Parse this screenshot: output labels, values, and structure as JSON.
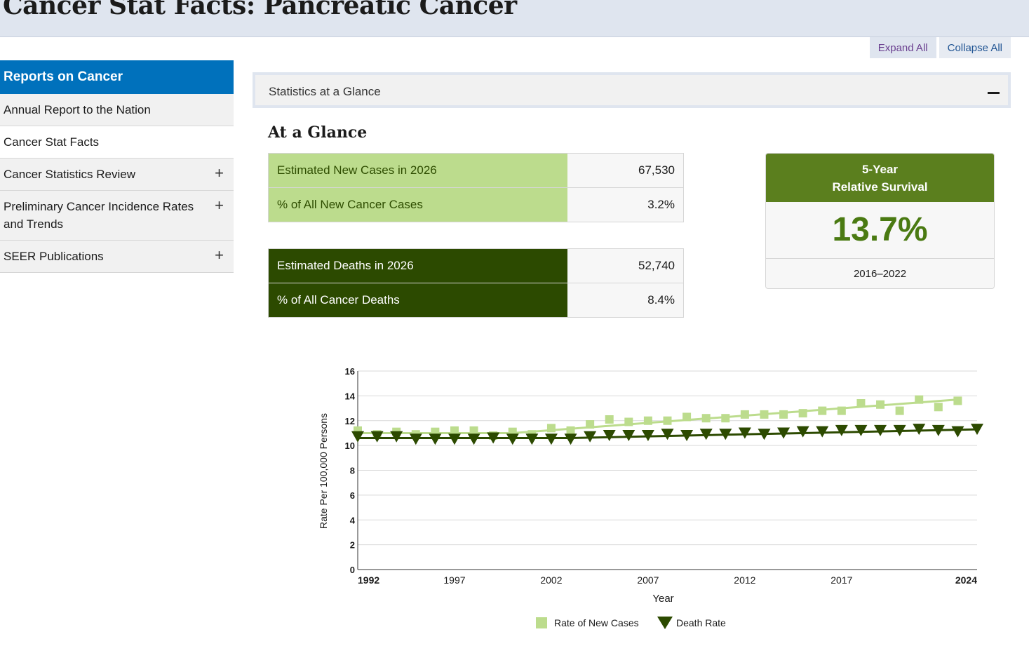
{
  "page": {
    "title": "Cancer Stat Facts: Pancreatic Cancer"
  },
  "controls": {
    "expand_all": "Expand All",
    "collapse_all": "Collapse All"
  },
  "sidebar": {
    "heading": "Reports on Cancer",
    "items": [
      {
        "label": "Annual Report to the Nation",
        "expandable": false
      },
      {
        "label": "Cancer Stat Facts",
        "expandable": false
      },
      {
        "label": "Cancer Statistics Review",
        "expandable": true,
        "toggle": "+"
      },
      {
        "label": "Preliminary Cancer Incidence Rates and Trends",
        "expandable": true,
        "toggle": "+"
      },
      {
        "label": "SEER Publications",
        "expandable": true,
        "toggle": "+"
      }
    ]
  },
  "accordion": {
    "label": "Statistics at a Glance",
    "state": "expanded"
  },
  "glance": {
    "heading": "At a Glance",
    "new_cases": [
      {
        "label": "Estimated New Cases in 2026",
        "value": "67,530"
      },
      {
        "label": "% of All New Cancer Cases",
        "value": "3.2%"
      }
    ],
    "deaths": [
      {
        "label": "Estimated Deaths in 2026",
        "value": "52,740"
      },
      {
        "label": "% of All Cancer Deaths",
        "value": "8.4%"
      }
    ],
    "survival": {
      "heading_line1": "5-Year",
      "heading_line2": "Relative Survival",
      "value": "13.7%",
      "range": "2016–2022"
    }
  },
  "colors": {
    "primary_blue": "#0071bc",
    "new_cases_green": "#bcdc8d",
    "death_green": "#2c4a00",
    "survival_green": "#5b7f1e"
  },
  "chart_data": {
    "type": "scatter",
    "xlabel": "Year",
    "ylabel": "Rate Per 100,000 Persons",
    "ylim": [
      0,
      16
    ],
    "xlim": [
      1992,
      2024
    ],
    "yticks": [
      0,
      2,
      4,
      6,
      8,
      10,
      12,
      14,
      16
    ],
    "xticks": [
      "1992",
      "1997",
      "2002",
      "2007",
      "2012",
      "2017",
      "2024"
    ],
    "grid": true,
    "legend_position": "bottom",
    "series": [
      {
        "name": "Rate of New Cases",
        "marker": "square",
        "color": "#bcdc8d",
        "x": [
          1992,
          1993,
          1994,
          1995,
          1996,
          1997,
          1998,
          1999,
          2000,
          2001,
          2002,
          2003,
          2004,
          2005,
          2006,
          2007,
          2008,
          2009,
          2010,
          2011,
          2012,
          2013,
          2014,
          2015,
          2016,
          2017,
          2018,
          2019,
          2020,
          2021,
          2022,
          2023
        ],
        "y": [
          11.2,
          10.9,
          11.1,
          10.9,
          11.1,
          11.2,
          11.2,
          10.8,
          11.1,
          10.9,
          11.4,
          11.2,
          11.7,
          12.1,
          11.9,
          12.0,
          12.0,
          12.3,
          12.2,
          12.2,
          12.5,
          12.5,
          12.5,
          12.6,
          12.8,
          12.8,
          13.4,
          13.3,
          12.8,
          13.7,
          13.1,
          13.6
        ],
        "trend": [
          [
            1992,
            11.0
          ],
          [
            2000,
            11.0
          ],
          [
            2023,
            13.7
          ]
        ]
      },
      {
        "name": "Death Rate",
        "marker": "triangle-down",
        "color": "#2c4a00",
        "x": [
          1992,
          1993,
          1994,
          1995,
          1996,
          1997,
          1998,
          1999,
          2000,
          2001,
          2002,
          2003,
          2004,
          2005,
          2006,
          2007,
          2008,
          2009,
          2010,
          2011,
          2012,
          2013,
          2014,
          2015,
          2016,
          2017,
          2018,
          2019,
          2020,
          2021,
          2022,
          2023,
          2024
        ],
        "y": [
          10.7,
          10.7,
          10.7,
          10.5,
          10.5,
          10.5,
          10.5,
          10.6,
          10.5,
          10.5,
          10.5,
          10.5,
          10.7,
          10.8,
          10.8,
          10.8,
          10.9,
          10.8,
          10.9,
          10.9,
          11.0,
          10.9,
          11.0,
          11.1,
          11.1,
          11.2,
          11.2,
          11.2,
          11.2,
          11.3,
          11.2,
          11.1,
          11.3
        ],
        "trend": [
          [
            1992,
            10.6
          ],
          [
            2003,
            10.6
          ],
          [
            2024,
            11.3
          ]
        ]
      }
    ]
  }
}
